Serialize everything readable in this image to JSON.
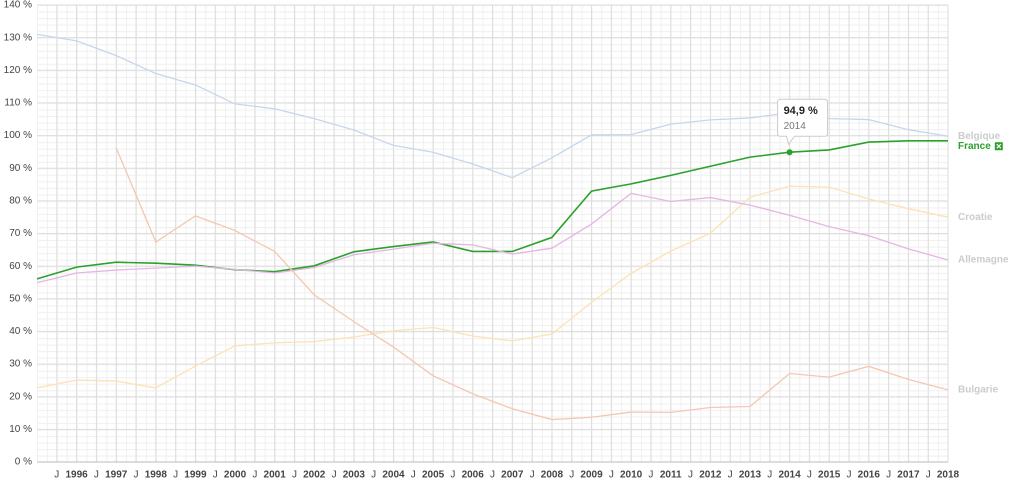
{
  "chart_data": {
    "type": "line",
    "x": [
      1995,
      1996,
      1997,
      1998,
      1999,
      2000,
      2001,
      2002,
      2003,
      2004,
      2005,
      2006,
      2007,
      2008,
      2009,
      2010,
      2011,
      2012,
      2013,
      2014,
      2015,
      2016,
      2017,
      2018
    ],
    "series": [
      {
        "name": "Belgique",
        "color": "#c6d6ec",
        "values": [
          131,
          129,
          124.5,
          119,
          115.5,
          109.7,
          108.2,
          105.2,
          101.7,
          97,
          94.9,
          91.3,
          87.1,
          93.2,
          100.2,
          100.3,
          103.5,
          104.8,
          105.4,
          107,
          105.2,
          104.9,
          101.8,
          99.8
        ]
      },
      {
        "name": "France",
        "color": "#2ca02c",
        "highlighted": true,
        "values": [
          56.1,
          59.7,
          61.2,
          60.9,
          60.3,
          58.9,
          58.3,
          60.1,
          64.4,
          66,
          67.4,
          64.5,
          64.5,
          68.8,
          83,
          85.2,
          87.8,
          90.6,
          93.4,
          94.9,
          95.6,
          98,
          98.4,
          98.4
        ]
      },
      {
        "name": "Croatie",
        "color": "#fde2b4",
        "values": [
          22.7,
          25.1,
          24.8,
          22.7,
          29.4,
          35.6,
          36.5,
          36.9,
          38.3,
          40.2,
          41.2,
          38.6,
          37.1,
          39.2,
          48.9,
          57.8,
          64.6,
          70.1,
          81.1,
          84.5,
          84.2,
          80.6,
          77.6,
          75
        ]
      },
      {
        "name": "Allemagne",
        "color": "#e4b6e4",
        "values": [
          54.9,
          57.9,
          58.8,
          59.4,
          60,
          59,
          57.9,
          59.6,
          63.5,
          65.2,
          67,
          66.5,
          63.7,
          65.5,
          72.9,
          82.3,
          79.8,
          81,
          78.7,
          75.6,
          72.1,
          69.3,
          65.3,
          61.9
        ]
      },
      {
        "name": "Bulgarie",
        "color": "#f5c6b2",
        "values": [
          null,
          null,
          96.2,
          67.4,
          75.4,
          70.9,
          64.5,
          51.2,
          43,
          35.2,
          26.4,
          20.9,
          16.3,
          13,
          13.7,
          15.3,
          15.2,
          16.7,
          17,
          27.1,
          26,
          29.3,
          25.3,
          22.1
        ]
      }
    ],
    "xlim": [
      1995,
      2018
    ],
    "xticks": [
      {
        "value": 1995.5,
        "label": "J"
      },
      1996,
      {
        "value": 1996.5,
        "label": "J"
      },
      1997,
      {
        "value": 1997.5,
        "label": "J"
      },
      1998,
      {
        "value": 1998.5,
        "label": "J"
      },
      1999,
      {
        "value": 1999.5,
        "label": "J"
      },
      2000,
      {
        "value": 2000.5,
        "label": "J"
      },
      2001,
      {
        "value": 2001.5,
        "label": "J"
      },
      2002,
      {
        "value": 2002.5,
        "label": "J"
      },
      2003,
      {
        "value": 2003.5,
        "label": "J"
      },
      2004,
      {
        "value": 2004.5,
        "label": "J"
      },
      2005,
      {
        "value": 2005.5,
        "label": "J"
      },
      2006,
      {
        "value": 2006.5,
        "label": "J"
      },
      2007,
      {
        "value": 2007.5,
        "label": "J"
      },
      2008,
      {
        "value": 2008.5,
        "label": "J"
      },
      2009,
      {
        "value": 2009.5,
        "label": "J"
      },
      2010,
      {
        "value": 2010.5,
        "label": "J"
      },
      2011,
      {
        "value": 2011.5,
        "label": "J"
      },
      2012,
      {
        "value": 2012.5,
        "label": "J"
      },
      2013,
      {
        "value": 2013.5,
        "label": "J"
      },
      2014,
      {
        "value": 2014.5,
        "label": "J"
      },
      2015,
      {
        "value": 2015.5,
        "label": "J"
      },
      2016,
      {
        "value": 2016.5,
        "label": "J"
      },
      2017,
      {
        "value": 2017.5,
        "label": "J"
      },
      2018
    ],
    "ylim": [
      0,
      140
    ],
    "yticks": [
      {
        "value": 0,
        "label": "0 %"
      },
      {
        "value": 10,
        "label": "10 %"
      },
      {
        "value": 20,
        "label": "20 %"
      },
      {
        "value": 30,
        "label": "30 %"
      },
      {
        "value": 40,
        "label": "40 %"
      },
      {
        "value": 50,
        "label": "50 %"
      },
      {
        "value": 60,
        "label": "60 %"
      },
      {
        "value": 70,
        "label": "70 %"
      },
      {
        "value": 80,
        "label": "80 %"
      },
      {
        "value": 90,
        "label": "90 %"
      },
      {
        "value": 100,
        "label": "100 %"
      },
      {
        "value": 110,
        "label": "110 %"
      },
      {
        "value": 120,
        "label": "120 %"
      },
      {
        "value": 130,
        "label": "130 %"
      },
      {
        "value": 140,
        "label": "140 %"
      }
    ],
    "grid": true,
    "tooltip": {
      "x": 2014,
      "value": 94.9,
      "label": "94,9 %"
    }
  }
}
